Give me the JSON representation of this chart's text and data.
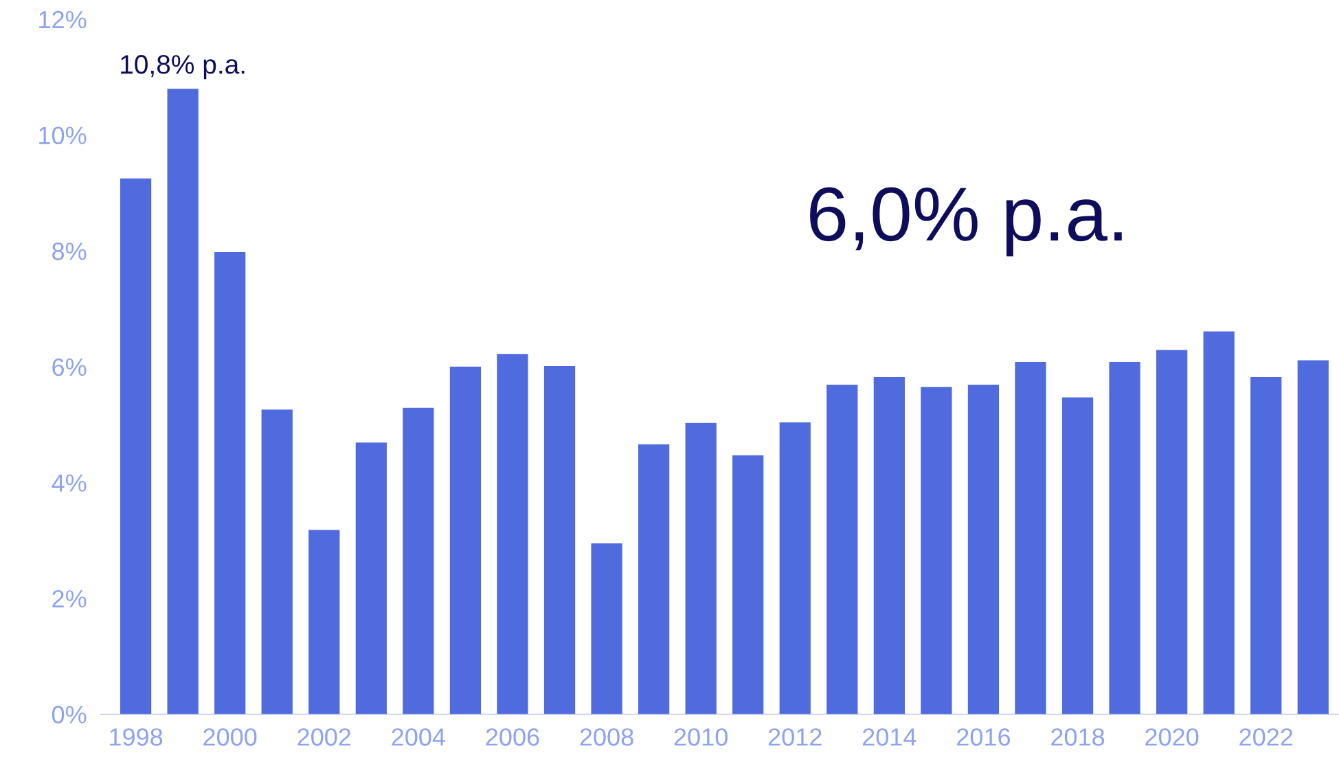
{
  "chart_data": {
    "type": "bar",
    "categories": [
      "1998",
      null,
      "2000",
      null,
      "2002",
      null,
      "2004",
      null,
      "2006",
      null,
      "2008",
      null,
      "2010",
      null,
      "2012",
      null,
      "2014",
      null,
      "2016",
      null,
      "2018",
      null,
      "2020",
      null,
      "2022",
      null
    ],
    "values": [
      9.25,
      10.8,
      7.98,
      5.26,
      3.18,
      4.69,
      5.29,
      6.0,
      6.22,
      6.01,
      2.95,
      4.66,
      5.03,
      4.47,
      5.04,
      5.69,
      5.82,
      5.65,
      5.69,
      6.08,
      5.47,
      6.08,
      6.29,
      6.61,
      5.82,
      6.11
    ],
    "color": "#4f6bde",
    "value_labels": [
      null,
      "10,8% p.a.",
      null,
      null,
      null,
      null,
      null,
      null,
      null,
      null,
      null,
      null,
      null,
      null,
      null,
      null,
      null,
      null,
      null,
      null,
      null,
      null,
      null,
      null,
      null,
      null
    ],
    "annotations": [
      "6,0% p.a."
    ],
    "ylim": [
      0,
      12
    ],
    "yticks": [
      {
        "value": 0,
        "label": "0%"
      },
      {
        "value": 2,
        "label": "2%"
      },
      {
        "value": 4,
        "label": "4%"
      },
      {
        "value": 6,
        "label": "6%"
      },
      {
        "value": 8,
        "label": "8%"
      },
      {
        "value": 10,
        "label": "10%"
      },
      {
        "value": 12,
        "label": "12%"
      }
    ],
    "grid": false,
    "legend": false
  }
}
